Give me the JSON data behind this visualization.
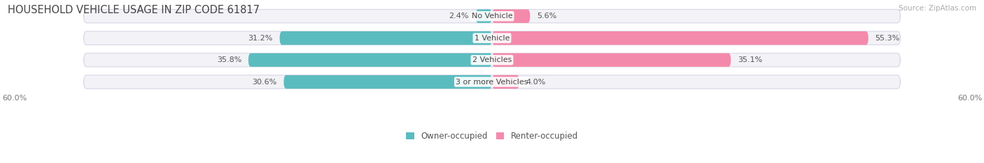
{
  "title": "HOUSEHOLD VEHICLE USAGE IN ZIP CODE 61817",
  "source": "Source: ZipAtlas.com",
  "categories": [
    "No Vehicle",
    "1 Vehicle",
    "2 Vehicles",
    "3 or more Vehicles"
  ],
  "owner_values": [
    2.4,
    31.2,
    35.8,
    30.6
  ],
  "renter_values": [
    5.6,
    55.3,
    35.1,
    4.0
  ],
  "owner_color": "#5bbcbf",
  "renter_color": "#f48aab",
  "bar_bg_color": "#f2f2f7",
  "bar_border_color": "#d8d8e8",
  "max_val": 60.0,
  "axis_label": "60.0%",
  "title_fontsize": 10.5,
  "source_fontsize": 7.5,
  "label_fontsize": 8,
  "category_fontsize": 8,
  "legend_fontsize": 8.5,
  "figsize": [
    14.06,
    2.34
  ],
  "dpi": 100
}
